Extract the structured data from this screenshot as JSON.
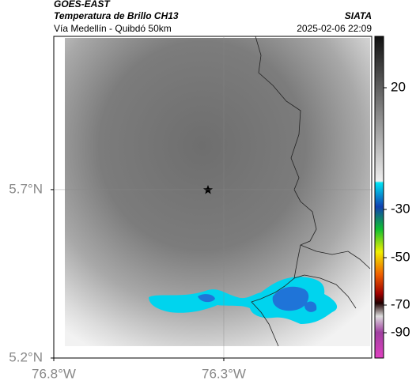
{
  "header": {
    "source": "GOES-EAST",
    "title": "Temperatura de Brillo CH13",
    "subtitle": "Vía Medellín - Quibdó 50km",
    "agency": "SIATA",
    "datetime": "2025-02-06 22:09"
  },
  "map": {
    "xlim": [
      -76.8,
      -75.865
    ],
    "ylim": [
      5.2,
      6.155
    ],
    "xticks": [
      {
        "value": -76.8,
        "label": "76.8°W"
      },
      {
        "value": -76.3,
        "label": "76.3°W"
      }
    ],
    "yticks": [
      {
        "value": 5.7,
        "label": "5.7°N"
      },
      {
        "value": 5.2,
        "label": "5.2°N"
      }
    ],
    "grid": true
  },
  "colorbar": {
    "ticks": [
      20,
      -30,
      -50,
      -70,
      -90
    ]
  }
}
